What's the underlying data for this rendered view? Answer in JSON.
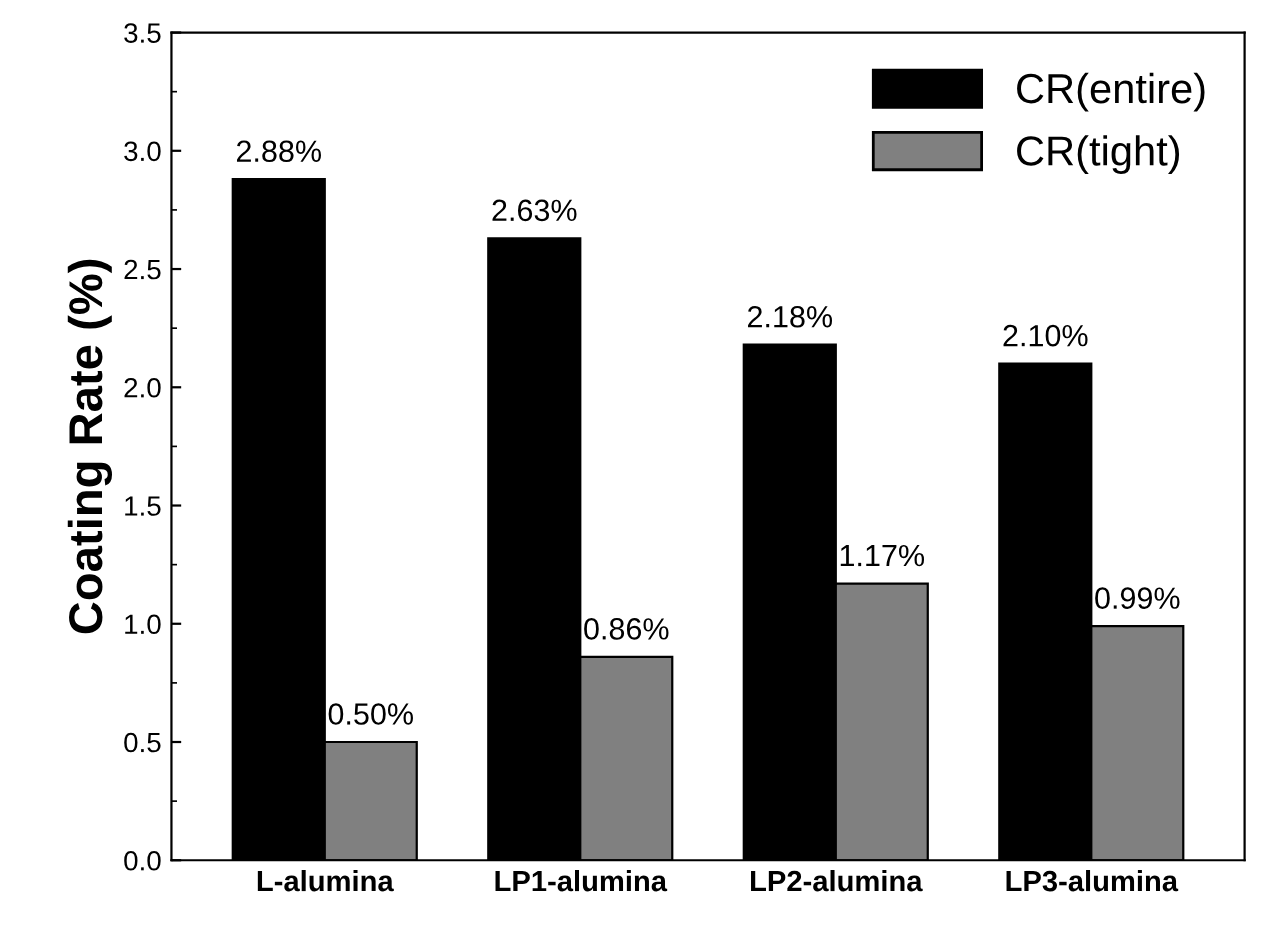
{
  "chart_data": {
    "type": "bar",
    "ylabel": "Coating Rate (%)",
    "categories": [
      "L-alumina",
      "LP1-alumina",
      "LP2-alumina",
      "LP3-alumina"
    ],
    "series": [
      {
        "name": "CR(entire)",
        "color": "#000000",
        "values": [
          2.88,
          2.63,
          2.18,
          2.1
        ],
        "value_labels": [
          "2.88%",
          "2.63%",
          "2.18%",
          "2.10%"
        ]
      },
      {
        "name": "CR(tight)",
        "color": "#808080",
        "values": [
          0.5,
          0.86,
          1.17,
          0.99
        ],
        "value_labels": [
          "0.50%",
          "0.86%",
          "1.17%",
          "0.99%"
        ]
      }
    ],
    "ylim": [
      0,
      3.5
    ],
    "yticks": [
      {
        "value": 0,
        "label": "0.0"
      },
      0.5,
      {
        "value": 1,
        "label": "1.0"
      },
      1.5,
      {
        "value": 2,
        "label": "2.0"
      },
      2.5,
      {
        "value": 3,
        "label": "3.0"
      },
      3.5
    ],
    "legend": "top right",
    "grid": false
  }
}
